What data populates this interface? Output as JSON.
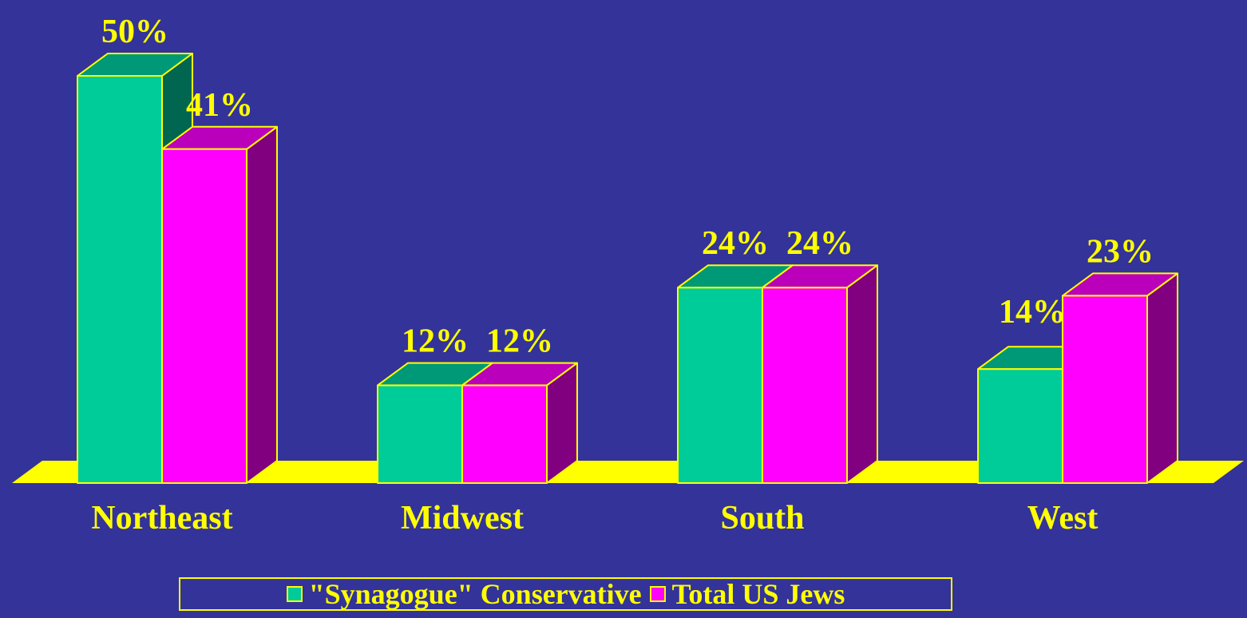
{
  "chart_data": {
    "type": "bar",
    "title": "",
    "xlabel": "",
    "ylabel": "",
    "categories": [
      "Northeast",
      "Midwest",
      "South",
      "West"
    ],
    "series": [
      {
        "name": "\"Synagogue\" Conservative",
        "values": [
          50,
          12,
          24,
          14
        ],
        "labels": [
          "50%",
          "12%",
          "24%",
          "14%"
        ]
      },
      {
        "name": "Total US Jews",
        "values": [
          41,
          12,
          24,
          23
        ],
        "labels": [
          "41%",
          "12%",
          "24%",
          "23%"
        ]
      }
    ],
    "ylim": [
      0,
      50
    ],
    "unit": "%",
    "grid": false,
    "legend_position": "bottom",
    "colors": {
      "background": "#333399",
      "floor": "#ffff00",
      "outline": "#ffff00",
      "text": "#ffff00",
      "series1_front": "#00cc99",
      "series1_top": "#009977",
      "series1_side": "#006650",
      "series2_front": "#ff00ff",
      "series2_top": "#bb00bb",
      "series2_side": "#800080"
    }
  },
  "legend": {
    "items": [
      {
        "label": "\"Synagogue\" Conservative",
        "color": "#00cc99"
      },
      {
        "label": "Total US Jews",
        "color": "#ff00ff"
      }
    ]
  }
}
